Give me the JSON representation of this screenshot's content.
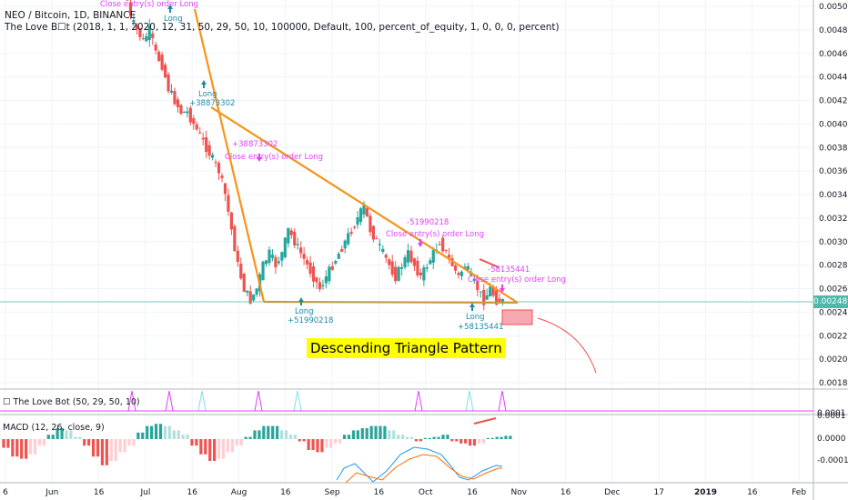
{
  "header": {
    "symbol_line": "NEO / Bitcoin, 1D, BINANCE",
    "indicator_line": "The Love B☐t (2018, 1, 1, 2020, 12, 31, 50, 29, 50, 10, 100000, Default, 100, percent_of_equity, 1, 0, 0, 0, percent)"
  },
  "price_axis": {
    "ticks": [
      "0.005000",
      "0.004800",
      "0.004600",
      "0.004400",
      "0.004200",
      "0.004000",
      "0.003800",
      "0.003600",
      "0.003400",
      "0.003200",
      "0.003000",
      "0.002800",
      "0.002600",
      "0.002400",
      "0.002200",
      "0.002000",
      "0.001800"
    ],
    "last_price": "0.002489"
  },
  "annotations": {
    "pattern_label": "Descending Triangle Pattern",
    "trades": [
      {
        "text": "Close entry(s) order Long"
      },
      {
        "text": "Long"
      },
      {
        "text": "Long"
      },
      {
        "text": "+38873302"
      },
      {
        "text": "+38873302"
      },
      {
        "text": "Close entry(s) order Long"
      },
      {
        "text": "Long"
      },
      {
        "text": "+51990218"
      },
      {
        "text": "-51990218"
      },
      {
        "text": "Close entry(s) order Long"
      },
      {
        "text": "Long"
      },
      {
        "text": "+58135441"
      },
      {
        "text": "-58135441"
      },
      {
        "text": "Close entry(s) order Long"
      }
    ]
  },
  "love_bot_panel": {
    "title": "☐ The Love Bot (50, 29, 50, 10)",
    "axis_value": "0.0001"
  },
  "macd_panel": {
    "title": "MACD (12, 26, close, 9)",
    "axis_ticks": [
      "0.0001",
      "0.0000",
      "-0.0001"
    ]
  },
  "time_axis": {
    "labels": [
      "6",
      "Jun",
      "16",
      "Jul",
      "16",
      "Aug",
      "16",
      "Sep",
      "16",
      "Oct",
      "16",
      "Nov",
      "16",
      "Dec",
      "17",
      "2019",
      "16",
      "Feb"
    ]
  },
  "colors": {
    "up": "#26a69a",
    "down": "#ef5350",
    "triangle": "#f7931a",
    "trade_text": "#e040fb",
    "long_text": "#1e88a8",
    "macd_line": "#2196f3",
    "signal_line": "#ff6d00"
  },
  "chart_data": {
    "type": "candlestick",
    "title": "NEO / Bitcoin, 1D, BINANCE",
    "ylim": [
      0.00175,
      0.00505
    ],
    "x_labels": [
      "6",
      "Jun",
      "16",
      "Jul",
      "16",
      "Aug",
      "16",
      "Sep",
      "16",
      "Oct",
      "16",
      "Nov",
      "16",
      "Dec",
      "17",
      "2019",
      "16",
      "Feb"
    ],
    "closes": [
      0.0052,
      0.0049,
      0.0048,
      0.0047,
      0.0048,
      0.0046,
      0.0045,
      0.0043,
      0.0042,
      0.0041,
      0.0041,
      0.004,
      0.0039,
      0.0038,
      0.0037,
      0.0036,
      0.0034,
      0.0031,
      0.0028,
      0.0026,
      0.0025,
      0.0026,
      0.0028,
      0.0029,
      0.0028,
      0.0029,
      0.0031,
      0.003,
      0.0029,
      0.0028,
      0.0027,
      0.0026,
      0.0027,
      0.0028,
      0.0029,
      0.003,
      0.0031,
      0.0032,
      0.0033,
      0.0031,
      0.003,
      0.0029,
      0.0028,
      0.0027,
      0.0028,
      0.0029,
      0.0028,
      0.0027,
      0.0028,
      0.0029,
      0.003,
      0.0029,
      0.0028,
      0.0027,
      0.0028,
      0.0027,
      0.0026,
      0.0025,
      0.0026,
      0.0025,
      0.00249
    ],
    "price_levels": {
      "last": 0.002489,
      "triangle_base": 0.00249
    }
  }
}
